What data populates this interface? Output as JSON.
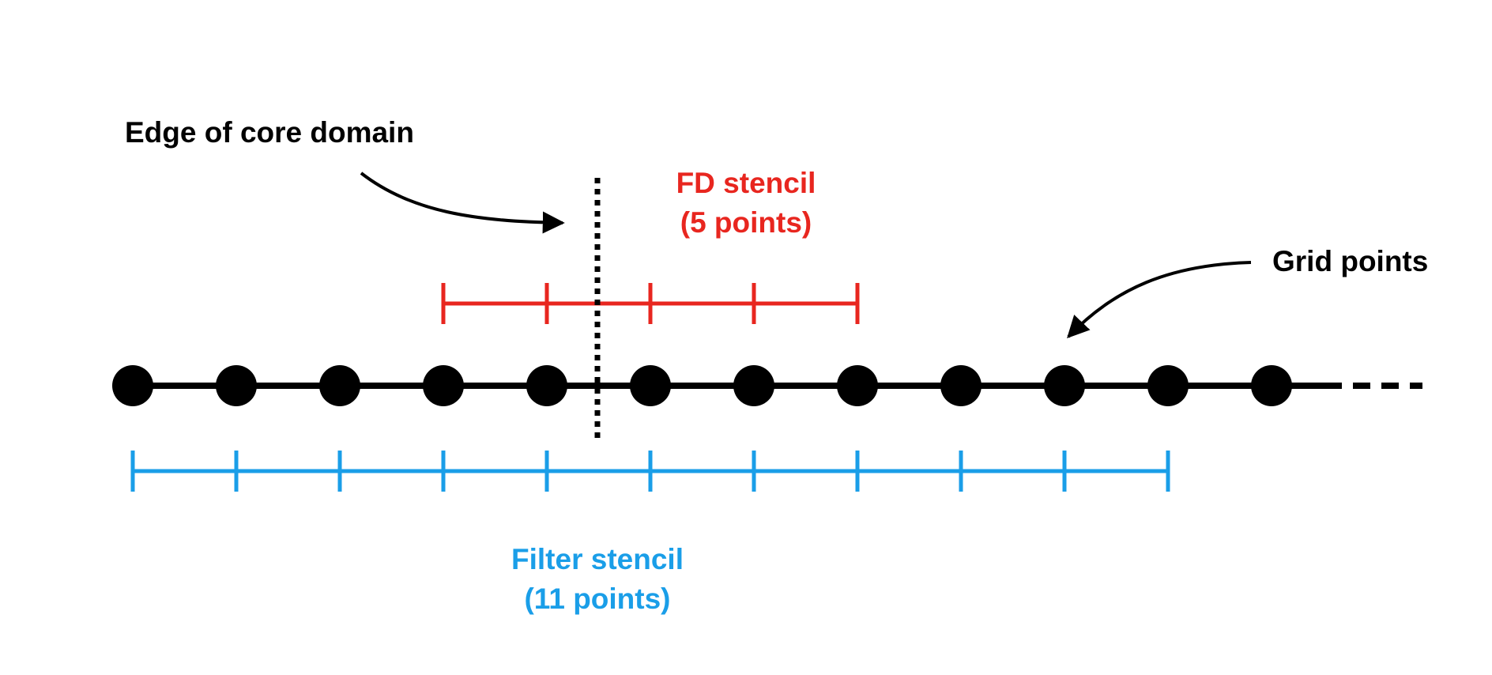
{
  "labels": {
    "edge_of_core_domain": "Edge of core domain",
    "fd_stencil_title": "FD stencil",
    "fd_stencil_count": "(5 points)",
    "grid_points": "Grid points",
    "filter_stencil_title": "Filter stencil",
    "filter_stencil_count": "(11 points)"
  },
  "grid": {
    "point_count": 12,
    "continues_right": true
  },
  "fd_stencil": {
    "points": 5,
    "color": "#e8261f"
  },
  "filter_stencil": {
    "points": 11,
    "color": "#1a9ee8"
  },
  "colors": {
    "ink": "#000000",
    "fd": "#e8261f",
    "filter": "#1a9ee8"
  }
}
